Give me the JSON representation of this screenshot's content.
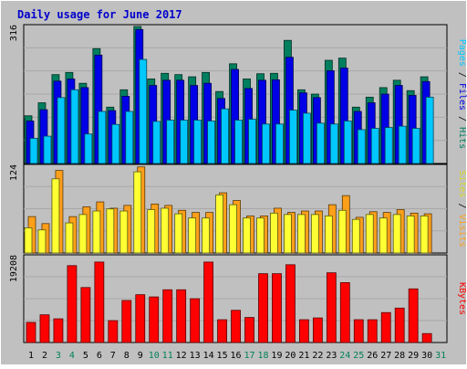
{
  "chart_data": {
    "type": "bar",
    "title": "Daily usage for June 2017",
    "categories": [
      "1",
      "2",
      "3",
      "4",
      "5",
      "6",
      "7",
      "8",
      "9",
      "10",
      "11",
      "12",
      "13",
      "14",
      "15",
      "16",
      "17",
      "18",
      "19",
      "20",
      "21",
      "22",
      "23",
      "24",
      "25",
      "26",
      "27",
      "28",
      "29",
      "30",
      "31"
    ],
    "weekend_days": [
      "3",
      "4",
      "10",
      "11",
      "17",
      "18",
      "24",
      "25",
      "31"
    ],
    "colors": {
      "title": "#0000cc",
      "weekday_label": "#000000",
      "weekend_label": "#00805a",
      "hits": "#007f5f",
      "files": "#0000e6",
      "pages": "#00c8ff",
      "visits": "#ff9f1a",
      "sites": "#ffff33",
      "kbytes": "#ff0000",
      "panel_bg": "#c0c0c0"
    },
    "panels": [
      {
        "name": "hits-files-pages",
        "max_label": "316",
        "ylim": [
          0,
          316
        ],
        "legend": [
          "Pages",
          "Files",
          "Hits"
        ],
        "series": [
          {
            "name": "Hits",
            "values": [
              110,
              140,
              205,
              210,
              185,
              265,
              130,
              170,
              316,
              195,
              208,
              205,
              200,
              210,
              166,
              230,
              195,
              207,
              208,
              284,
              170,
              160,
              238,
              243,
              130,
              153,
              175,
              192,
              168,
              200,
              0
            ]
          },
          {
            "name": "Files",
            "values": [
              98,
              124,
              190,
              195,
              175,
              250,
              122,
              155,
              309,
              180,
              192,
              192,
              180,
              185,
              150,
              217,
              173,
              192,
              193,
              245,
              163,
              152,
              214,
              220,
              120,
              140,
              160,
              180,
              157,
              189,
              0
            ]
          },
          {
            "name": "Pages",
            "values": [
              58,
              63,
              152,
              170,
              68,
              120,
              90,
              120,
              240,
              97,
              100,
              100,
              100,
              98,
              126,
              100,
              102,
              91,
              91,
              123,
              116,
              93,
              91,
              98,
              78,
              81,
              83,
              86,
              81,
              153,
              0
            ]
          }
        ]
      },
      {
        "name": "visits-sites",
        "max_label": "124",
        "ylim": [
          0,
          124
        ],
        "legend": [
          "Sites",
          "Visits"
        ],
        "series": [
          {
            "name": "Visits",
            "values": [
              52,
              42,
              118,
              52,
              66,
              73,
              64,
              68,
              123,
              70,
              68,
              61,
              58,
              58,
              86,
              75,
              53,
              53,
              64,
              58,
              60,
              60,
              69,
              82,
              51,
              59,
              58,
              62,
              57,
              56,
              0
            ]
          },
          {
            "name": "Sites",
            "values": [
              36,
              33,
              106,
              43,
              55,
              60,
              63,
              60,
              116,
              62,
              64,
              56,
              50,
              50,
              83,
              69,
              50,
              50,
              57,
              55,
              55,
              55,
              53,
              61,
              48,
              55,
              50,
              55,
              53,
              53,
              0
            ]
          }
        ]
      },
      {
        "name": "kbytes",
        "max_label": "19208",
        "ylim": [
          0,
          19208
        ],
        "legend": [
          "KBytes"
        ],
        "series": [
          {
            "name": "KBytes",
            "values": [
              4500,
              6200,
              5300,
              17200,
              12300,
              18000,
              4900,
              9400,
              10700,
              10200,
              11800,
              11800,
              9800,
              18000,
              5100,
              7200,
              5600,
              15400,
              15400,
              17400,
              5100,
              5500,
              15600,
              13400,
              5100,
              5100,
              6700,
              7700,
              12000,
              2000,
              0
            ]
          }
        ]
      }
    ]
  }
}
